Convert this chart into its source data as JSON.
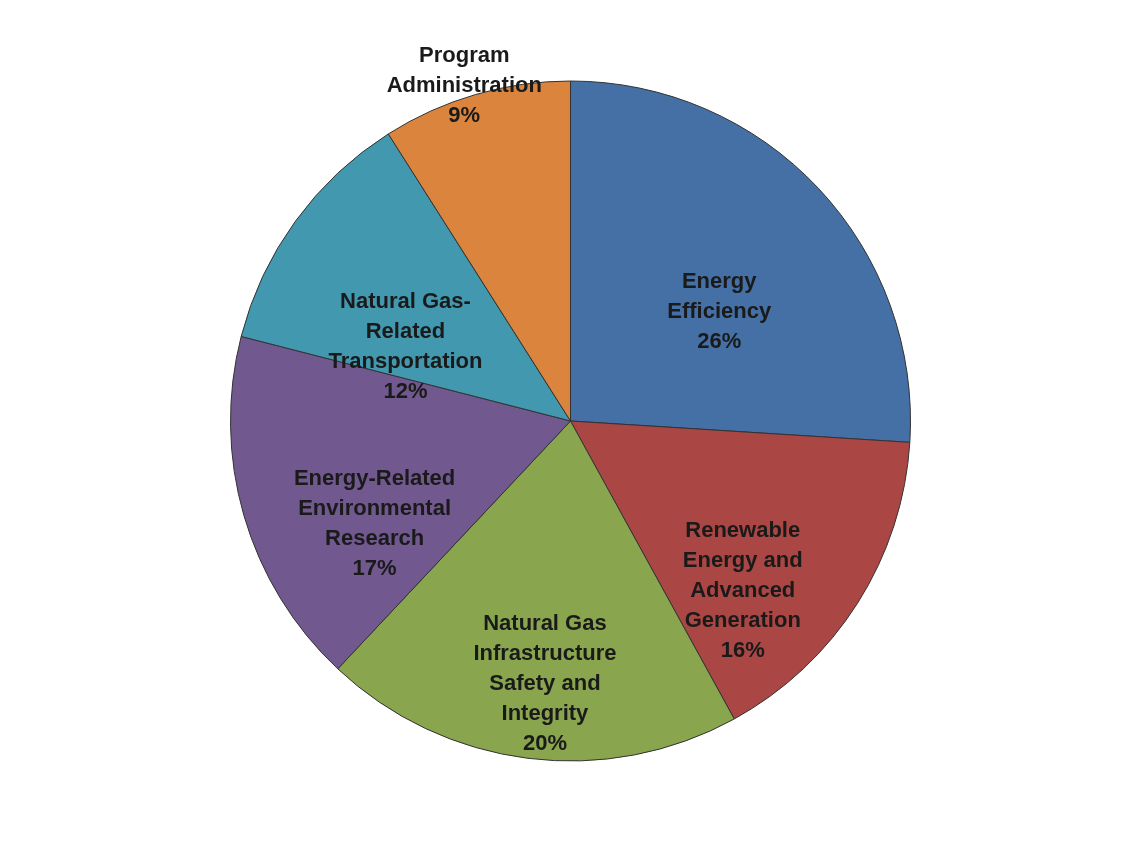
{
  "chart_data": {
    "type": "pie",
    "categories": [
      "Energy Efficiency",
      "Renewable Energy and Advanced Generation",
      "Natural Gas Infrastructure Safety and Integrity",
      "Energy-Related Environmental Research",
      "Natural Gas-Related Transportation",
      "Program Administration"
    ],
    "values": [
      26,
      16,
      20,
      17,
      12,
      9
    ],
    "value_labels": [
      "26%",
      "16%",
      "20%",
      "17%",
      "12%",
      "9%"
    ],
    "colors": [
      "#4470a6",
      "#aa4643",
      "#89a54e",
      "#71588f",
      "#4198af",
      "#db843d"
    ]
  }
}
